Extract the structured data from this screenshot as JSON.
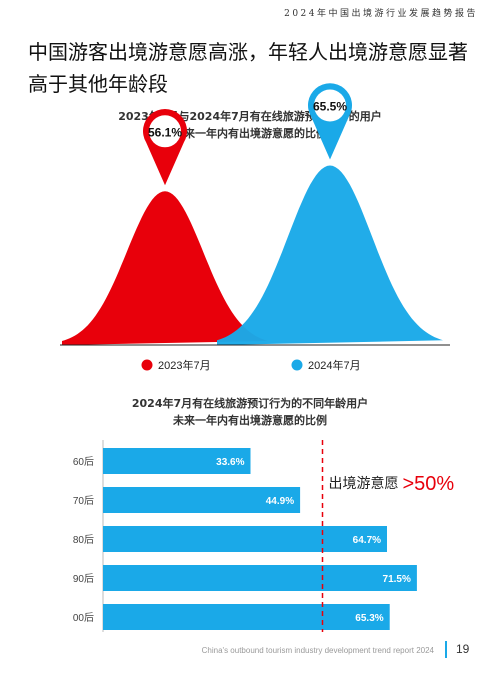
{
  "header": {
    "title": "2024年中国出境游行业发展趋势报告"
  },
  "headline": "中国游客出境游意愿高涨，年轻人出境游意愿显著高于其他年龄段",
  "footer": {
    "text": "China's outbound tourism industry development trend report 2024",
    "page_number": "19"
  },
  "colors": {
    "red": "#e8000b",
    "blue": "#1aa9e8",
    "dash": "#e8000b"
  },
  "chart_data": [
    {
      "type": "area",
      "title_lines": [
        "2023年7月与2024年7月有在线旅游预订行为的用户",
        "未来一年内有出境游意愿的比例"
      ],
      "series": [
        {
          "name": "2023年7月",
          "value": 56.1,
          "label": "56.1%",
          "color": "#e8000b"
        },
        {
          "name": "2024年7月",
          "value": 65.5,
          "label": "65.5%",
          "color": "#1aa9e8"
        }
      ]
    },
    {
      "type": "bar",
      "orientation": "horizontal",
      "title_lines": [
        "2024年7月有在线旅游预订行为的不同年龄用户",
        "未来一年内有出境游意愿的比例"
      ],
      "categories": [
        "60后",
        "70后",
        "80后",
        "90后",
        "00后"
      ],
      "values": [
        33.6,
        44.9,
        64.7,
        71.5,
        65.3
      ],
      "value_labels": [
        "33.6%",
        "44.9%",
        "64.7%",
        "71.5%",
        "65.3%"
      ],
      "reference_line": {
        "value": 50,
        "label_text": "出境游意愿",
        "label_value": ">50%"
      },
      "color": "#1aa9e8"
    }
  ]
}
